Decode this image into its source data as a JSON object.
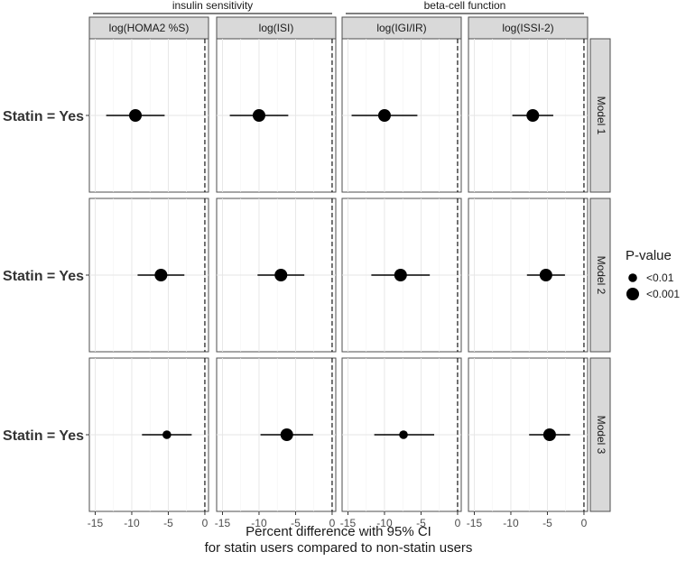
{
  "chart_data": {
    "type": "scatter",
    "title": "",
    "x_axis": {
      "title_lines": [
        "Percent difference with 95% CI",
        "for statin users compared to non-statin users"
      ],
      "range": [
        -15.8,
        0.5
      ],
      "ticks": [
        -15,
        -10,
        -5,
        0
      ],
      "tick_labels": [
        "-15",
        "-10",
        "-5",
        "0"
      ],
      "reference_line": 0
    },
    "y_category": "Statin = Yes",
    "groups": [
      {
        "label": "insulin sensitivity",
        "columns": [
          0,
          1
        ]
      },
      {
        "label": "beta-cell function",
        "columns": [
          2,
          3
        ]
      }
    ],
    "columns": [
      "log(HOMA2 %S)",
      "log(ISI)",
      "log(IGI/IR)",
      "log(ISSI-2)"
    ],
    "rows": [
      "Model 1",
      "Model 2",
      "Model 3"
    ],
    "legend": {
      "title": "P-value",
      "placement": "right",
      "items": [
        {
          "label": "<0.01",
          "size": "small"
        },
        {
          "label": "<0.001",
          "size": "large"
        }
      ]
    },
    "estimates": [
      [
        {
          "est": -9.5,
          "lo": -13.5,
          "hi": -5.5,
          "p": "<0.001"
        },
        {
          "est": -10.0,
          "lo": -14.0,
          "hi": -6.0,
          "p": "<0.001"
        },
        {
          "est": -10.0,
          "lo": -14.5,
          "hi": -5.5,
          "p": "<0.001"
        },
        {
          "est": -7.0,
          "lo": -9.8,
          "hi": -4.2,
          "p": "<0.001"
        }
      ],
      [
        {
          "est": -6.0,
          "lo": -9.2,
          "hi": -2.8,
          "p": "<0.001"
        },
        {
          "est": -7.0,
          "lo": -10.2,
          "hi": -3.8,
          "p": "<0.001"
        },
        {
          "est": -7.8,
          "lo": -11.8,
          "hi": -3.8,
          "p": "<0.001"
        },
        {
          "est": -5.2,
          "lo": -7.8,
          "hi": -2.6,
          "p": "<0.001"
        }
      ],
      [
        {
          "est": -5.2,
          "lo": -8.6,
          "hi": -1.8,
          "p": "<0.01"
        },
        {
          "est": -6.2,
          "lo": -9.8,
          "hi": -2.6,
          "p": "<0.001"
        },
        {
          "est": -7.4,
          "lo": -11.4,
          "hi": -3.2,
          "p": "<0.01"
        },
        {
          "est": -4.7,
          "lo": -7.5,
          "hi": -1.9,
          "p": "<0.001"
        }
      ]
    ]
  }
}
